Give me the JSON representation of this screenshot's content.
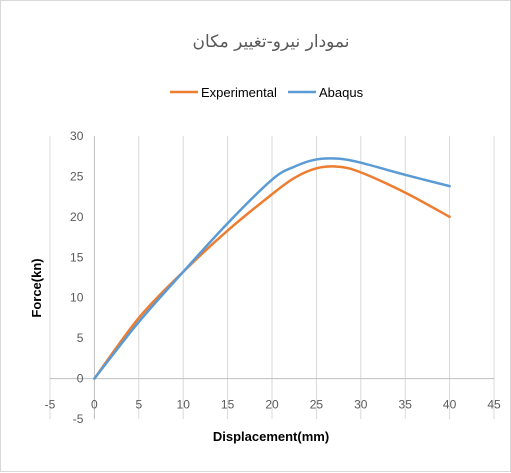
{
  "chart_data": {
    "type": "line",
    "title": "نمودار نیرو-تغییر مکان",
    "xlabel": "Displacement(mm)",
    "ylabel": "Force(kn)",
    "xlim": [
      -5,
      45
    ],
    "ylim": [
      -5,
      30
    ],
    "x_ticks": [
      "-5",
      "0",
      "5",
      "10",
      "15",
      "20",
      "25",
      "30",
      "35",
      "40",
      "45"
    ],
    "y_ticks": [
      "-5",
      "0",
      "5",
      "10",
      "15",
      "20",
      "25",
      "30"
    ],
    "grid": "vertical",
    "legend_position": "top",
    "series": [
      {
        "name": "Experimental",
        "color": "#ED7D31",
        "x": [
          0,
          5,
          10,
          15,
          20,
          22.5,
          25,
          27.5,
          30,
          35,
          40
        ],
        "y": [
          0,
          7.5,
          13.2,
          18.3,
          22.8,
          24.8,
          26.0,
          26.2,
          25.5,
          23.0,
          20.0
        ]
      },
      {
        "name": "Abaqus",
        "color": "#5B9BD5",
        "x": [
          0,
          5,
          10,
          15,
          20,
          22.5,
          25,
          27.5,
          30,
          35,
          40
        ],
        "y": [
          0,
          7.0,
          13.2,
          19.2,
          24.6,
          26.2,
          27.1,
          27.2,
          26.7,
          25.2,
          23.8
        ]
      }
    ]
  }
}
